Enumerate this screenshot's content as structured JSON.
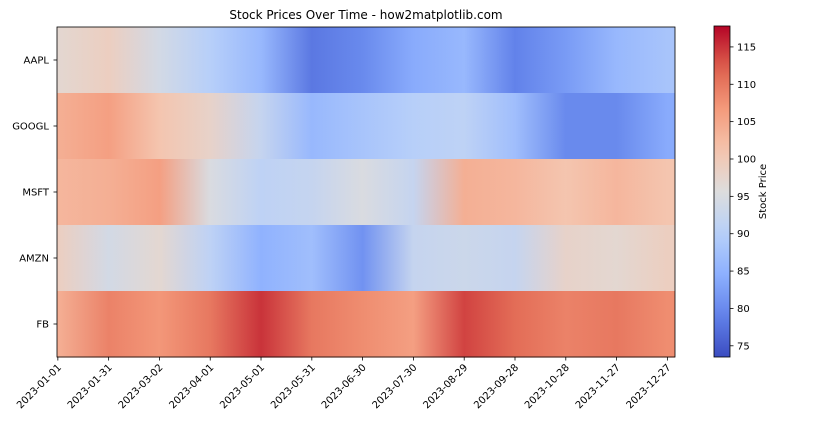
{
  "chart_data": {
    "type": "heatmap",
    "title": "Stock Prices Over Time - how2matplotlib.com",
    "xlabel": "",
    "ylabel": "",
    "rows": [
      "AAPL",
      "GOOGL",
      "MSFT",
      "AMZN",
      "FB"
    ],
    "x_tick_labels": [
      "2023-01-01",
      "2023-01-31",
      "2023-03-02",
      "2023-04-01",
      "2023-05-01",
      "2023-05-31",
      "2023-06-30",
      "2023-07-30",
      "2023-08-29",
      "2023-09-28",
      "2023-10-28",
      "2023-11-27",
      "2023-12-27"
    ],
    "x_range": [
      "2023-01-01",
      "2023-12-31"
    ],
    "colormap": "coolwarm",
    "colorbar": {
      "label": "Stock Price",
      "vmin": 73.5,
      "vmax": 117.8,
      "ticks": [
        75,
        80,
        85,
        90,
        95,
        100,
        105,
        110,
        115
      ]
    },
    "series": [
      {
        "name": "AAPL",
        "dates": [
          "2023-01-01",
          "2023-01-31",
          "2023-03-02",
          "2023-04-01",
          "2023-05-01",
          "2023-05-31",
          "2023-06-30",
          "2023-07-30",
          "2023-08-29",
          "2023-09-28",
          "2023-10-28",
          "2023-11-27",
          "2023-12-27"
        ],
        "values": [
          97,
          99,
          94,
          90,
          86,
          78,
          80,
          84,
          86,
          79,
          82,
          86,
          88
        ]
      },
      {
        "name": "GOOGL",
        "dates": [
          "2023-01-01",
          "2023-01-31",
          "2023-03-02",
          "2023-04-01",
          "2023-05-01",
          "2023-05-31",
          "2023-06-30",
          "2023-07-30",
          "2023-08-29",
          "2023-09-28",
          "2023-10-28",
          "2023-11-27",
          "2023-12-27"
        ],
        "values": [
          104,
          106,
          101,
          98,
          92,
          86,
          88,
          90,
          91,
          87,
          80,
          80,
          84
        ]
      },
      {
        "name": "MSFT",
        "dates": [
          "2023-01-01",
          "2023-01-31",
          "2023-03-02",
          "2023-04-01",
          "2023-05-01",
          "2023-05-31",
          "2023-06-30",
          "2023-07-30",
          "2023-08-29",
          "2023-09-28",
          "2023-10-28",
          "2023-11-27",
          "2023-12-27"
        ],
        "values": [
          103,
          104,
          106,
          95,
          91,
          92,
          95,
          92,
          104,
          103,
          101,
          103,
          101
        ]
      },
      {
        "name": "AMZN",
        "dates": [
          "2023-01-01",
          "2023-01-31",
          "2023-03-02",
          "2023-04-01",
          "2023-05-01",
          "2023-05-31",
          "2023-06-30",
          "2023-07-30",
          "2023-08-29",
          "2023-09-28",
          "2023-10-28",
          "2023-11-27",
          "2023-12-27"
        ],
        "values": [
          99,
          94,
          97,
          91,
          85,
          87,
          81,
          92,
          93,
          92,
          98,
          97,
          99
        ]
      },
      {
        "name": "FB",
        "dates": [
          "2023-01-01",
          "2023-01-31",
          "2023-03-02",
          "2023-04-01",
          "2023-05-01",
          "2023-05-31",
          "2023-06-30",
          "2023-07-30",
          "2023-08-29",
          "2023-09-28",
          "2023-10-28",
          "2023-11-27",
          "2023-12-27"
        ],
        "values": [
          104,
          109,
          107,
          110,
          115,
          110,
          108,
          106,
          114,
          111,
          109,
          110,
          108
        ]
      }
    ]
  }
}
